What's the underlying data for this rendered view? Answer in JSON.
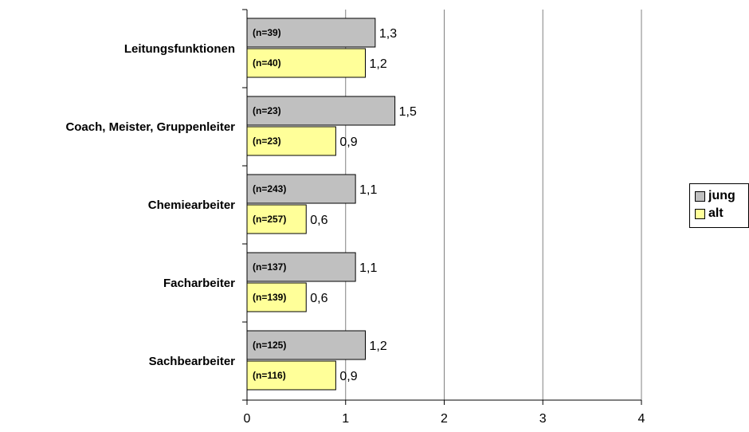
{
  "chart_data": {
    "type": "bar",
    "orientation": "horizontal",
    "categories": [
      "Leitungsfunktionen",
      "Coach, Meister, Gruppenleiter",
      "Chemiearbeiter",
      "Facharbeiter",
      "Sachbearbeiter"
    ],
    "series": [
      {
        "name": "jung",
        "color": "#c0c0c0",
        "values": [
          1.3,
          1.5,
          1.1,
          1.1,
          1.2
        ],
        "value_labels": [
          "1,3",
          "1,5",
          "1,1",
          "1,1",
          "1,2"
        ],
        "n_labels": [
          "(n=39)",
          "(n=23)",
          "(n=243)",
          "(n=137)",
          "(n=125)"
        ]
      },
      {
        "name": "alt",
        "color": "#ffff99",
        "values": [
          1.2,
          0.9,
          0.6,
          0.6,
          0.9
        ],
        "value_labels": [
          "1,2",
          "0,9",
          "0,6",
          "0,6",
          "0,9"
        ],
        "n_labels": [
          "(n=40)",
          "(n=23)",
          "(n=257)",
          "(n=139)",
          "(n=116)"
        ]
      }
    ],
    "xlim": [
      0,
      4
    ],
    "xticks": [
      "0",
      "1",
      "2",
      "3",
      "4"
    ],
    "grid": true,
    "legend_position": "right"
  }
}
